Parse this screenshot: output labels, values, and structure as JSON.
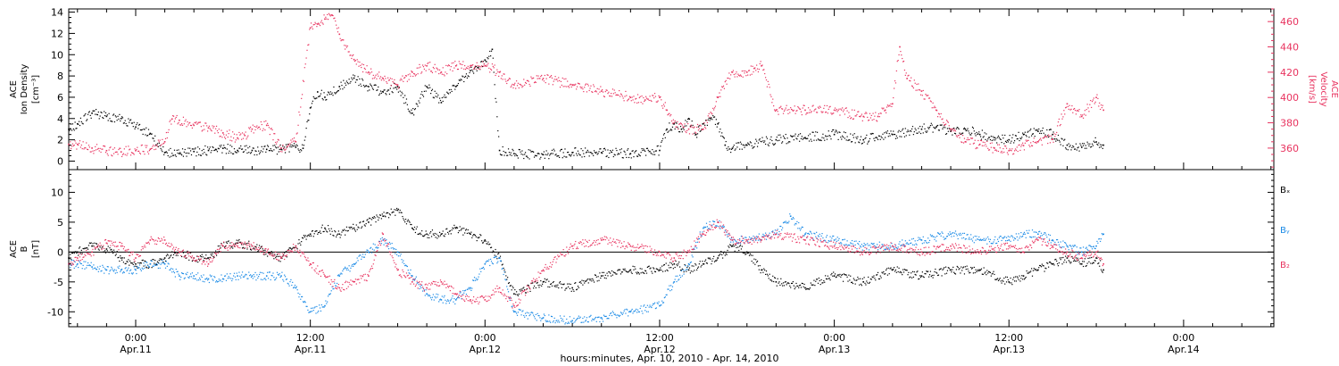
{
  "colors": {
    "black": "#000000",
    "red": "#e8335f",
    "blue": "#1a8ae6"
  },
  "chart_data": [
    {
      "type": "scatter",
      "panel": "top",
      "ylabel_left": [
        "ACE",
        "Ion Density",
        "[cm⁻³]"
      ],
      "ylabel_right": [
        "ACE",
        "Velocity",
        "[km/s]"
      ],
      "ylim_left": [
        -0.8,
        14.3
      ],
      "ylim_right": [
        343,
        470
      ],
      "yticks_left": [
        "0",
        "2",
        "4",
        "6",
        "8",
        "10",
        "12",
        "14"
      ],
      "yticks_right": [
        "360",
        "380",
        "400",
        "420",
        "440",
        "460"
      ],
      "x_unit": "hours since 2010-04-10 00:00",
      "series": [
        {
          "name": "",
          "axis": "left",
          "color": "black",
          "x": [
            19.4,
            20,
            21,
            22,
            23,
            24,
            25,
            26,
            27,
            28,
            29,
            29.5,
            30,
            31,
            32,
            33,
            34,
            35,
            35.5,
            36,
            36.5,
            37,
            38,
            39,
            40,
            41,
            42,
            43,
            44,
            45,
            46,
            47,
            47.5,
            48,
            48.5,
            49,
            50,
            52,
            54,
            56,
            58,
            60,
            60.5,
            61,
            61.5,
            62,
            62.5,
            63,
            63.5,
            64,
            64.5,
            65,
            66,
            68,
            70,
            72,
            74,
            76,
            78,
            79,
            80,
            81,
            82,
            83,
            84,
            85,
            86,
            87,
            88,
            89,
            90,
            90.5
          ],
          "y": [
            3.0,
            3.5,
            4.5,
            4.2,
            4.0,
            3.2,
            2.6,
            0.8,
            0.7,
            0.9,
            1.0,
            1.1,
            1.2,
            1.0,
            1.0,
            1.1,
            1.1,
            1.3,
            1.2,
            5.0,
            6.5,
            6.0,
            7.0,
            7.8,
            7.0,
            6.5,
            7.0,
            4.5,
            7.0,
            5.5,
            7.0,
            8.5,
            8.8,
            9.5,
            10.5,
            1.0,
            0.7,
            0.6,
            0.8,
            0.8,
            0.7,
            1.0,
            3.0,
            3.5,
            3.0,
            4.0,
            2.5,
            3.5,
            4.0,
            3.5,
            1.5,
            1.2,
            1.5,
            2.0,
            2.2,
            2.5,
            2.0,
            2.5,
            3.0,
            3.2,
            2.8,
            3.0,
            2.5,
            2.2,
            2.0,
            2.5,
            2.8,
            2.5,
            1.5,
            1.3,
            1.8,
            1.5
          ]
        },
        {
          "name": "",
          "axis": "right",
          "color": "red",
          "x": [
            19.4,
            20,
            21,
            22,
            23,
            24,
            25,
            26,
            26.5,
            27,
            28,
            29,
            30,
            31,
            31.5,
            32,
            33,
            34,
            35,
            36,
            36.5,
            37,
            37.5,
            38,
            39,
            40,
            41,
            42,
            43,
            44,
            45,
            46,
            47,
            48,
            49,
            50,
            52,
            54,
            56,
            58,
            59,
            60,
            60.5,
            61,
            62,
            63,
            64,
            65,
            66,
            66.5,
            67,
            68,
            70,
            72,
            74,
            75,
            75.5,
            76,
            76.5,
            77,
            78,
            79,
            80,
            81,
            82,
            83,
            84,
            85,
            86,
            87,
            88,
            89,
            90,
            90.5
          ],
          "y": [
            363,
            363,
            360,
            358,
            357,
            358,
            359,
            365,
            383,
            382,
            378,
            376,
            372,
            368,
            370,
            375,
            378,
            360,
            365,
            455,
            458,
            462,
            465,
            450,
            430,
            420,
            415,
            410,
            420,
            425,
            420,
            425,
            425,
            425,
            420,
            410,
            415,
            410,
            405,
            400,
            398,
            400,
            390,
            380,
            375,
            375,
            400,
            420,
            420,
            423,
            425,
            390,
            390,
            390,
            385,
            385,
            390,
            395,
            440,
            415,
            405,
            390,
            375,
            365,
            363,
            360,
            358,
            362,
            365,
            367,
            395,
            385,
            400,
            390
          ]
        }
      ]
    },
    {
      "type": "scatter",
      "panel": "bottom",
      "ylabel_left": [
        "ACE",
        "B",
        "[nT]"
      ],
      "ylim": [
        -12.5,
        13.8
      ],
      "yticks": [
        "-10",
        "-5",
        "0",
        "5",
        "10"
      ],
      "zero_line": true,
      "x_unit": "hours since 2010-04-10 00:00",
      "legend": [
        "Bₓ",
        "Bᵧ",
        "B₂"
      ],
      "series": [
        {
          "name": "Bₓ",
          "color": "black",
          "x": [
            19.4,
            20,
            21,
            22,
            23,
            24,
            25,
            26,
            27,
            28,
            29,
            30,
            31,
            32,
            33,
            34,
            35,
            36,
            37,
            38,
            39,
            40,
            41,
            42,
            43,
            44,
            45,
            46,
            47,
            48,
            49,
            50,
            52,
            54,
            56,
            58,
            60,
            61,
            62,
            63,
            64,
            65,
            66,
            67,
            68,
            70,
            72,
            74,
            76,
            78,
            80,
            82,
            84,
            85,
            86,
            87,
            88,
            89,
            90,
            90.5
          ],
          "y": [
            -1,
            0,
            1,
            0.5,
            -1,
            -2,
            -2,
            -1,
            0,
            -1,
            -1,
            1,
            1.5,
            1,
            0,
            -1,
            1,
            3,
            4,
            3,
            4,
            5,
            6,
            7,
            4,
            3,
            3,
            4,
            3,
            2,
            -1,
            -7,
            -5,
            -6,
            -4,
            -3,
            -3,
            -2,
            -3,
            -2,
            -1,
            1,
            0,
            -3,
            -5,
            -6,
            -4,
            -5,
            -3,
            -4,
            -3,
            -3,
            -5,
            -4,
            -3,
            -2,
            -1,
            -2,
            -1,
            -3
          ]
        },
        {
          "name": "Bᵧ",
          "color": "blue",
          "x": [
            19.4,
            20,
            21,
            22,
            23,
            24,
            25,
            26,
            27,
            28,
            29,
            30,
            31,
            32,
            33,
            34,
            35,
            36,
            37,
            38,
            39,
            40,
            41,
            42,
            43,
            44,
            45,
            46,
            47,
            48,
            49,
            50,
            52,
            54,
            56,
            58,
            60,
            61,
            62,
            63,
            64,
            65,
            66,
            68,
            69,
            70,
            72,
            74,
            76,
            78,
            80,
            82,
            84,
            85,
            86,
            87,
            88,
            89,
            90,
            90.5
          ],
          "y": [
            -2,
            -2,
            -2.5,
            -3,
            -3,
            -3,
            -2,
            -2,
            -4,
            -4,
            -4.5,
            -4.5,
            -4,
            -4,
            -4,
            -4,
            -6,
            -10,
            -9,
            -4,
            -2,
            0,
            2,
            0,
            -4,
            -7,
            -8,
            -8,
            -6,
            -2,
            -1,
            -10,
            -11,
            -11.5,
            -11,
            -10,
            -9,
            -5,
            -2,
            4,
            5,
            2,
            2,
            3,
            6,
            3,
            2,
            1,
            1,
            2,
            3,
            2,
            2,
            3,
            3,
            2,
            1,
            0,
            1,
            3
          ]
        },
        {
          "name": "B₂",
          "color": "red",
          "x": [
            19.4,
            20,
            21,
            22,
            23,
            24,
            25,
            26,
            27,
            28,
            29,
            30,
            31,
            32,
            33,
            34,
            35,
            36,
            37,
            38,
            39,
            40,
            41,
            42,
            43,
            44,
            45,
            46,
            47,
            48,
            49,
            50,
            52,
            54,
            56,
            58,
            60,
            61,
            62,
            63,
            64,
            65,
            66,
            67,
            68,
            70,
            72,
            74,
            76,
            78,
            80,
            82,
            84,
            85,
            86,
            87,
            88,
            89,
            90,
            90.5
          ],
          "y": [
            -2,
            -1,
            0,
            1.5,
            1,
            -1,
            2,
            2,
            0,
            -1,
            -2,
            1,
            1,
            1,
            0,
            -1,
            1,
            -2,
            -4,
            -6,
            -5,
            -4,
            3,
            -3,
            -5,
            -6,
            -5,
            -7,
            -8,
            -8,
            -6,
            -9,
            -3,
            1,
            2,
            1,
            0,
            -1,
            0,
            3,
            5,
            2,
            2,
            2,
            3,
            2,
            1,
            0,
            1,
            0,
            1,
            0,
            1,
            0,
            2,
            1,
            0,
            -1,
            0,
            -2
          ]
        }
      ]
    }
  ],
  "x_axis": {
    "tick_hours": [
      24,
      36,
      48,
      60,
      72,
      84,
      96
    ],
    "tick_times": [
      "0:00",
      "12:00",
      "0:00",
      "12:00",
      "0:00",
      "12:00",
      "0:00"
    ],
    "tick_dates": [
      "Apr.11",
      "Apr.11",
      "Apr.12",
      "Apr.12",
      "Apr.13",
      "Apr.13",
      "Apr.14"
    ],
    "xlim": [
      19.4,
      102.2
    ],
    "xlabel": "hours:minutes, Apr. 10, 2010 - Apr. 14, 2010"
  }
}
